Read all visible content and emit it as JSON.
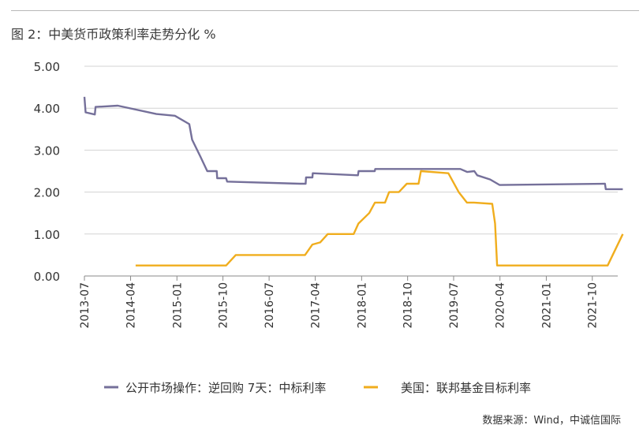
{
  "title": "图 2：中美货币政策利率走势分化 %",
  "source": "数据来源：Wind，中诚信国际",
  "chart_data": {
    "type": "line",
    "ylim": [
      0,
      5
    ],
    "yticks": [
      "0.00",
      "1.00",
      "2.00",
      "3.00",
      "4.00",
      "5.00"
    ],
    "xticks": [
      "2013-07",
      "2014-04",
      "2015-01",
      "2015-10",
      "2016-07",
      "2017-04",
      "2018-01",
      "2018-10",
      "2019-07",
      "2020-04",
      "2021-01",
      "2021-10"
    ],
    "xlim": [
      "2013-07",
      "2022-03"
    ],
    "grid": "horizontal",
    "legend": "bottom",
    "series": [
      {
        "name": "公开市场操作：逆回购 7天：中标利率",
        "color": "#75709a",
        "points": [
          [
            "2013-07-01",
            4.27
          ],
          [
            "2013-07-08",
            3.9
          ],
          [
            "2013-09-01",
            3.85
          ],
          [
            "2013-09-05",
            4.03
          ],
          [
            "2014-01-15",
            4.06
          ],
          [
            "2014-09-01",
            3.86
          ],
          [
            "2014-12-20",
            3.82
          ],
          [
            "2015-03-15",
            3.62
          ],
          [
            "2015-04-01",
            3.25
          ],
          [
            "2015-05-20",
            2.85
          ],
          [
            "2015-06-30",
            2.5
          ],
          [
            "2015-08-25",
            2.5
          ],
          [
            "2015-08-28",
            2.33
          ],
          [
            "2015-10-20",
            2.33
          ],
          [
            "2015-10-26",
            2.25
          ],
          [
            "2016-12-31",
            2.2
          ],
          [
            "2017-02-03",
            2.2
          ],
          [
            "2017-02-05",
            2.35
          ],
          [
            "2017-03-15",
            2.35
          ],
          [
            "2017-03-17",
            2.45
          ],
          [
            "2017-12-10",
            2.4
          ],
          [
            "2017-12-14",
            2.5
          ],
          [
            "2018-03-20",
            2.5
          ],
          [
            "2018-03-23",
            2.55
          ],
          [
            "2019-08-10",
            2.55
          ],
          [
            "2019-09-20",
            2.48
          ],
          [
            "2019-11-01",
            2.5
          ],
          [
            "2019-11-18",
            2.4
          ],
          [
            "2020-02-03",
            2.3
          ],
          [
            "2020-03-30",
            2.17
          ],
          [
            "2021-12-15",
            2.2
          ],
          [
            "2021-12-20",
            2.07
          ],
          [
            "2022-03-31",
            2.07
          ]
        ]
      },
      {
        "name": "美国：联邦基金目标利率",
        "color": "#f0ad1d",
        "points": [
          [
            "2014-05-01",
            0.25
          ],
          [
            "2015-10-20",
            0.25
          ],
          [
            "2015-12-16",
            0.5
          ],
          [
            "2016-12-14",
            0.5
          ],
          [
            "2017-01-30",
            0.5
          ],
          [
            "2017-03-15",
            0.75
          ],
          [
            "2017-04-30",
            0.8
          ],
          [
            "2017-06-14",
            1.0
          ],
          [
            "2017-11-15",
            1.0
          ],
          [
            "2017-12-13",
            1.25
          ],
          [
            "2018-02-15",
            1.5
          ],
          [
            "2018-03-21",
            1.75
          ],
          [
            "2018-05-20",
            1.75
          ],
          [
            "2018-06-13",
            2.0
          ],
          [
            "2018-08-10",
            2.0
          ],
          [
            "2018-09-26",
            2.2
          ],
          [
            "2018-12-05",
            2.2
          ],
          [
            "2018-12-19",
            2.5
          ],
          [
            "2019-05-31",
            2.45
          ],
          [
            "2019-07-31",
            2.0
          ],
          [
            "2019-09-18",
            1.75
          ],
          [
            "2019-10-30",
            1.75
          ],
          [
            "2020-02-15",
            1.72
          ],
          [
            "2020-03-03",
            1.25
          ],
          [
            "2020-03-15",
            0.25
          ],
          [
            "2021-12-31",
            0.25
          ],
          [
            "2022-03-31",
            1.0
          ]
        ]
      }
    ]
  }
}
